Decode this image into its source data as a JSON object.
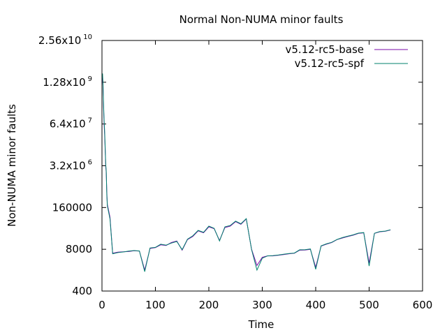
{
  "chart_data": {
    "type": "line",
    "title": "Normal Non-NUMA minor faults",
    "xlabel": "Time",
    "ylabel": "Non-NUMA minor faults",
    "xlim": [
      0,
      600
    ],
    "ylim": [
      400,
      25600000000
    ],
    "yscale": "log",
    "grid": false,
    "legend": "top-right",
    "x_ticks": [
      {
        "value": 0,
        "label": "0"
      },
      {
        "value": 100,
        "label": "100"
      },
      {
        "value": 200,
        "label": "200"
      },
      {
        "value": 300,
        "label": "300"
      },
      {
        "value": 400,
        "label": "400"
      },
      {
        "value": 500,
        "label": "500"
      },
      {
        "value": 600,
        "label": "600"
      }
    ],
    "y_ticks": [
      {
        "value": 400,
        "base": "400",
        "exp": ""
      },
      {
        "value": 8000,
        "base": "8000",
        "exp": ""
      },
      {
        "value": 160000,
        "base": "160000",
        "exp": ""
      },
      {
        "value": 3200000,
        "base": "3.2x10",
        "exp": "6"
      },
      {
        "value": 64000000,
        "base": "6.4x10",
        "exp": "7"
      },
      {
        "value": 1280000000,
        "base": "1.28x10",
        "exp": "9"
      },
      {
        "value": 25600000000,
        "base": "2.56x10",
        "exp": "10"
      }
    ],
    "series": [
      {
        "name": "v5.12-rc5-base",
        "color": "#7a0aa8",
        "x": [
          1,
          2,
          3,
          4,
          5,
          6,
          7,
          8,
          9,
          10,
          15,
          20,
          30,
          40,
          50,
          60,
          70,
          80,
          90,
          100,
          110,
          120,
          130,
          140,
          150,
          160,
          170,
          180,
          190,
          200,
          210,
          220,
          230,
          240,
          250,
          260,
          270,
          280,
          290,
          300,
          310,
          320,
          330,
          340,
          350,
          360,
          370,
          380,
          390,
          400,
          410,
          420,
          430,
          440,
          450,
          460,
          470,
          480,
          490,
          500,
          510,
          520,
          530,
          540
        ],
        "y": [
          1800000000,
          1000000000,
          200000000,
          60000000,
          30000000,
          10000000,
          3000000,
          2000000,
          500000,
          200000,
          80000,
          6000,
          6500,
          6700,
          6800,
          7200,
          7000,
          1800,
          8500,
          9000,
          11000,
          10500,
          13000,
          14500,
          7500,
          16000,
          20000,
          30000,
          26000,
          40000,
          35000,
          15000,
          38000,
          42000,
          58000,
          48000,
          70000,
          8000,
          2500,
          4500,
          5000,
          5000,
          5200,
          5500,
          5800,
          6000,
          7500,
          7600,
          8000,
          2200,
          10000,
          11500,
          13000,
          16000,
          18000,
          20000,
          22000,
          25000,
          26000,
          3000,
          25000,
          28000,
          29000,
          32000
        ]
      },
      {
        "name": "v5.12-rc5-spf",
        "color": "#00826e",
        "x": [
          1,
          2,
          3,
          4,
          5,
          6,
          7,
          8,
          9,
          10,
          15,
          20,
          30,
          40,
          50,
          60,
          70,
          80,
          90,
          100,
          110,
          120,
          130,
          140,
          150,
          160,
          170,
          180,
          190,
          200,
          210,
          220,
          230,
          240,
          250,
          260,
          270,
          280,
          290,
          300,
          310,
          320,
          330,
          340,
          350,
          360,
          370,
          380,
          390,
          400,
          410,
          420,
          430,
          440,
          450,
          460,
          470,
          480,
          490,
          500,
          510,
          520,
          530,
          540
        ],
        "y": [
          2400000000,
          1200000000,
          250000000,
          80000000,
          40000000,
          12000000,
          3500000,
          2200000,
          400000,
          180000,
          70000,
          5800,
          6300,
          6600,
          7000,
          7300,
          7100,
          1600,
          8800,
          9200,
          11500,
          10800,
          12500,
          14000,
          7800,
          16500,
          21000,
          31000,
          27000,
          42000,
          36000,
          14500,
          40000,
          44000,
          60000,
          50000,
          72000,
          7800,
          1800,
          4200,
          5000,
          5100,
          5300,
          5600,
          5900,
          6100,
          7700,
          7800,
          8200,
          1900,
          10200,
          11800,
          13200,
          16200,
          18500,
          20500,
          22500,
          25500,
          26500,
          2400,
          25200,
          28500,
          29500,
          32500
        ]
      }
    ]
  }
}
